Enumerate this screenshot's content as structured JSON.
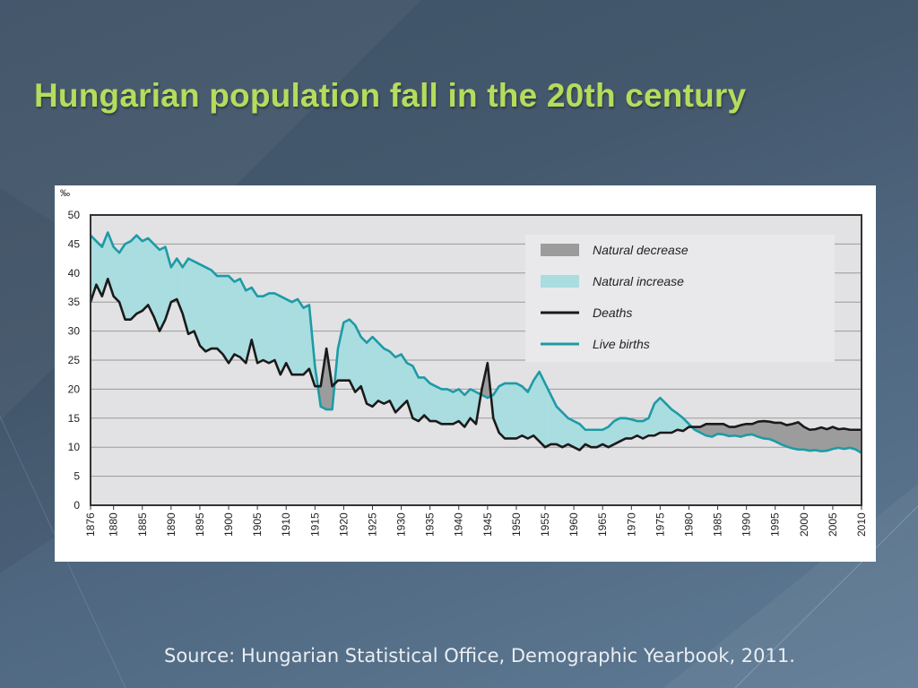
{
  "slide": {
    "title": "Hungarian population fall in the 20th century",
    "source": "Source: Hungarian Statistical Office, Demographic Yearbook, 2011."
  },
  "colors": {
    "title": "#b5dc5c",
    "births_line": "#1d9ba5",
    "deaths_line": "#1a1a1a",
    "natural_increase": "#a9dde0",
    "natural_decrease": "#9c9c9c",
    "plot_background": "#e2e2e4"
  },
  "chart_data": {
    "type": "line",
    "ylabel": "‰",
    "ylim": [
      0,
      50
    ],
    "yticks": [
      0,
      5,
      10,
      15,
      20,
      25,
      30,
      35,
      40,
      45,
      50
    ],
    "xlim": [
      1876,
      2010
    ],
    "xticks": [
      1876,
      1880,
      1885,
      1890,
      1895,
      1900,
      1905,
      1910,
      1915,
      1920,
      1925,
      1930,
      1935,
      1940,
      1945,
      1950,
      1955,
      1960,
      1965,
      1970,
      1975,
      1980,
      1985,
      1990,
      1995,
      2000,
      2005,
      2010
    ],
    "grid": true,
    "legend_position": "top-right",
    "legend": [
      {
        "label": "Natural decrease",
        "kind": "area",
        "color": "#9c9c9c"
      },
      {
        "label": "Natural increase",
        "kind": "area",
        "color": "#a9dde0"
      },
      {
        "label": "Deaths",
        "kind": "line",
        "color": "#1a1a1a"
      },
      {
        "label": "Live births",
        "kind": "line",
        "color": "#1d9ba5"
      }
    ],
    "series": [
      {
        "name": "Deaths",
        "points": [
          [
            1876,
            35
          ],
          [
            1877,
            38
          ],
          [
            1878,
            36
          ],
          [
            1879,
            39
          ],
          [
            1880,
            36
          ],
          [
            1881,
            35
          ],
          [
            1882,
            32
          ],
          [
            1883,
            32
          ],
          [
            1884,
            33
          ],
          [
            1885,
            33.5
          ],
          [
            1886,
            34.5
          ],
          [
            1887,
            32.5
          ],
          [
            1888,
            30
          ],
          [
            1889,
            32
          ],
          [
            1890,
            35
          ],
          [
            1891,
            35.5
          ],
          [
            1892,
            33
          ],
          [
            1893,
            29.5
          ],
          [
            1894,
            30
          ],
          [
            1895,
            27.5
          ],
          [
            1896,
            26.5
          ],
          [
            1897,
            27
          ],
          [
            1898,
            27
          ],
          [
            1899,
            26
          ],
          [
            1900,
            24.5
          ],
          [
            1901,
            26
          ],
          [
            1902,
            25.5
          ],
          [
            1903,
            24.5
          ],
          [
            1904,
            28.5
          ],
          [
            1905,
            24.5
          ],
          [
            1906,
            25
          ],
          [
            1907,
            24.5
          ],
          [
            1908,
            25
          ],
          [
            1909,
            22.5
          ],
          [
            1910,
            24.5
          ],
          [
            1911,
            22.5
          ],
          [
            1912,
            22.5
          ],
          [
            1913,
            22.5
          ],
          [
            1914,
            23.5
          ],
          [
            1915,
            20.5
          ],
          [
            1916,
            20.5
          ],
          [
            1917,
            27
          ],
          [
            1918,
            20.5
          ],
          [
            1919,
            21.5
          ],
          [
            1920,
            21.5
          ],
          [
            1921,
            21.5
          ],
          [
            1922,
            19.5
          ],
          [
            1923,
            20.5
          ],
          [
            1924,
            17.5
          ],
          [
            1925,
            17
          ],
          [
            1926,
            18
          ],
          [
            1927,
            17.5
          ],
          [
            1928,
            18
          ],
          [
            1929,
            16
          ],
          [
            1930,
            17
          ],
          [
            1931,
            18
          ],
          [
            1932,
            15
          ],
          [
            1933,
            14.5
          ],
          [
            1934,
            15.5
          ],
          [
            1935,
            14.5
          ],
          [
            1936,
            14.5
          ],
          [
            1937,
            14
          ],
          [
            1938,
            14
          ],
          [
            1939,
            14
          ],
          [
            1940,
            14.5
          ],
          [
            1941,
            13.5
          ],
          [
            1942,
            15
          ],
          [
            1943,
            14
          ],
          [
            1944,
            20
          ],
          [
            1945,
            24.5
          ],
          [
            1946,
            15
          ],
          [
            1947,
            12.5
          ],
          [
            1948,
            11.5
          ],
          [
            1949,
            11.5
          ],
          [
            1950,
            11.5
          ],
          [
            1951,
            12
          ],
          [
            1952,
            11.5
          ],
          [
            1953,
            12
          ],
          [
            1954,
            11
          ],
          [
            1955,
            10
          ],
          [
            1956,
            10.5
          ],
          [
            1957,
            10.5
          ],
          [
            1958,
            10
          ],
          [
            1959,
            10.5
          ],
          [
            1960,
            10
          ],
          [
            1961,
            9.5
          ],
          [
            1962,
            10.5
          ],
          [
            1963,
            10
          ],
          [
            1964,
            10
          ],
          [
            1965,
            10.5
          ],
          [
            1966,
            10
          ],
          [
            1967,
            10.5
          ],
          [
            1968,
            11
          ],
          [
            1969,
            11.5
          ],
          [
            1970,
            11.5
          ],
          [
            1971,
            12
          ],
          [
            1972,
            11.5
          ],
          [
            1973,
            12
          ],
          [
            1974,
            12
          ],
          [
            1975,
            12.5
          ],
          [
            1976,
            12.5
          ],
          [
            1977,
            12.5
          ],
          [
            1978,
            13
          ],
          [
            1979,
            12.8
          ],
          [
            1980,
            13.5
          ],
          [
            1981,
            13.5
          ],
          [
            1982,
            13.5
          ],
          [
            1983,
            14
          ],
          [
            1984,
            14
          ],
          [
            1985,
            14
          ],
          [
            1986,
            14
          ],
          [
            1987,
            13.5
          ],
          [
            1988,
            13.5
          ],
          [
            1989,
            13.8
          ],
          [
            1990,
            14
          ],
          [
            1991,
            14
          ],
          [
            1992,
            14.4
          ],
          [
            1993,
            14.5
          ],
          [
            1994,
            14.4
          ],
          [
            1995,
            14.2
          ],
          [
            1996,
            14.2
          ],
          [
            1997,
            13.8
          ],
          [
            1998,
            14
          ],
          [
            1999,
            14.3
          ],
          [
            2000,
            13.5
          ],
          [
            2001,
            13
          ],
          [
            2002,
            13.1
          ],
          [
            2003,
            13.4
          ],
          [
            2004,
            13.1
          ],
          [
            2005,
            13.5
          ],
          [
            2006,
            13.1
          ],
          [
            2007,
            13.2
          ],
          [
            2008,
            13
          ],
          [
            2009,
            13
          ],
          [
            2010,
            13
          ]
        ]
      },
      {
        "name": "Live births",
        "points": [
          [
            1876,
            46.5
          ],
          [
            1877,
            45.5
          ],
          [
            1878,
            44.5
          ],
          [
            1879,
            47
          ],
          [
            1880,
            44.5
          ],
          [
            1881,
            43.5
          ],
          [
            1882,
            45
          ],
          [
            1883,
            45.5
          ],
          [
            1884,
            46.5
          ],
          [
            1885,
            45.5
          ],
          [
            1886,
            46
          ],
          [
            1887,
            45
          ],
          [
            1888,
            44
          ],
          [
            1889,
            44.5
          ],
          [
            1890,
            41
          ],
          [
            1891,
            42.5
          ],
          [
            1892,
            41
          ],
          [
            1893,
            42.5
          ],
          [
            1894,
            42
          ],
          [
            1895,
            41.5
          ],
          [
            1896,
            41
          ],
          [
            1897,
            40.5
          ],
          [
            1898,
            39.5
          ],
          [
            1899,
            39.5
          ],
          [
            1900,
            39.5
          ],
          [
            1901,
            38.5
          ],
          [
            1902,
            39
          ],
          [
            1903,
            37
          ],
          [
            1904,
            37.5
          ],
          [
            1905,
            36
          ],
          [
            1906,
            36
          ],
          [
            1907,
            36.5
          ],
          [
            1908,
            36.5
          ],
          [
            1909,
            36
          ],
          [
            1910,
            35.5
          ],
          [
            1911,
            35
          ],
          [
            1912,
            35.5
          ],
          [
            1913,
            34
          ],
          [
            1914,
            34.5
          ],
          [
            1915,
            24
          ],
          [
            1916,
            17
          ],
          [
            1917,
            16.5
          ],
          [
            1918,
            16.5
          ],
          [
            1919,
            27
          ],
          [
            1920,
            31.5
          ],
          [
            1921,
            32
          ],
          [
            1922,
            31
          ],
          [
            1923,
            29
          ],
          [
            1924,
            28
          ],
          [
            1925,
            29
          ],
          [
            1926,
            28
          ],
          [
            1927,
            27
          ],
          [
            1928,
            26.5
          ],
          [
            1929,
            25.5
          ],
          [
            1930,
            26
          ],
          [
            1931,
            24.5
          ],
          [
            1932,
            24
          ],
          [
            1933,
            22
          ],
          [
            1934,
            22
          ],
          [
            1935,
            21
          ],
          [
            1936,
            20.5
          ],
          [
            1937,
            20
          ],
          [
            1938,
            20
          ],
          [
            1939,
            19.5
          ],
          [
            1940,
            20
          ],
          [
            1941,
            19
          ],
          [
            1942,
            20
          ],
          [
            1943,
            19.5
          ],
          [
            1944,
            19
          ],
          [
            1945,
            18.5
          ],
          [
            1946,
            19
          ],
          [
            1947,
            20.5
          ],
          [
            1948,
            21
          ],
          [
            1949,
            21
          ],
          [
            1950,
            21
          ],
          [
            1951,
            20.5
          ],
          [
            1952,
            19.5
          ],
          [
            1953,
            21.5
          ],
          [
            1954,
            23
          ],
          [
            1955,
            21
          ],
          [
            1956,
            19
          ],
          [
            1957,
            17
          ],
          [
            1958,
            16
          ],
          [
            1959,
            15
          ],
          [
            1960,
            14.5
          ],
          [
            1961,
            14
          ],
          [
            1962,
            13
          ],
          [
            1963,
            13
          ],
          [
            1964,
            13
          ],
          [
            1965,
            13
          ],
          [
            1966,
            13.5
          ],
          [
            1967,
            14.5
          ],
          [
            1968,
            15
          ],
          [
            1969,
            15
          ],
          [
            1970,
            14.8
          ],
          [
            1971,
            14.5
          ],
          [
            1972,
            14.5
          ],
          [
            1973,
            15
          ],
          [
            1974,
            17.5
          ],
          [
            1975,
            18.5
          ],
          [
            1976,
            17.5
          ],
          [
            1977,
            16.5
          ],
          [
            1978,
            15.8
          ],
          [
            1979,
            15
          ],
          [
            1980,
            14
          ],
          [
            1981,
            13
          ],
          [
            1982,
            12.5
          ],
          [
            1983,
            12
          ],
          [
            1984,
            11.8
          ],
          [
            1985,
            12.3
          ],
          [
            1986,
            12.2
          ],
          [
            1987,
            11.9
          ],
          [
            1988,
            12
          ],
          [
            1989,
            11.8
          ],
          [
            1990,
            12.1
          ],
          [
            1991,
            12.2
          ],
          [
            1992,
            11.8
          ],
          [
            1993,
            11.5
          ],
          [
            1994,
            11.4
          ],
          [
            1995,
            11
          ],
          [
            1996,
            10.5
          ],
          [
            1997,
            10.1
          ],
          [
            1998,
            9.8
          ],
          [
            1999,
            9.6
          ],
          [
            2000,
            9.6
          ],
          [
            2001,
            9.4
          ],
          [
            2002,
            9.5
          ],
          [
            2003,
            9.3
          ],
          [
            2004,
            9.4
          ],
          [
            2005,
            9.7
          ],
          [
            2006,
            9.9
          ],
          [
            2007,
            9.7
          ],
          [
            2008,
            9.9
          ],
          [
            2009,
            9.6
          ],
          [
            2010,
            9
          ]
        ]
      }
    ]
  }
}
